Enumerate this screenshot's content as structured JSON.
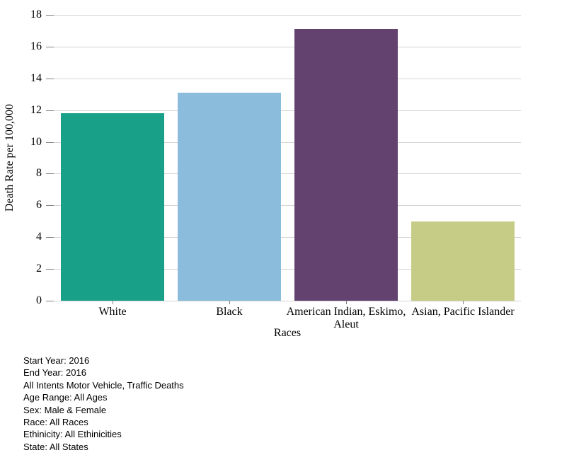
{
  "chart_data": {
    "type": "bar",
    "categories": [
      "White",
      "Black",
      "American Indian, Eskimo, Aleut",
      "Asian, Pacific Islander"
    ],
    "values": [
      11.8,
      13.1,
      17.1,
      5.0
    ],
    "bar_colors": [
      "#19a088",
      "#8bbcdb",
      "#634270",
      "#c6cc86"
    ],
    "title": "",
    "xlabel": "Races",
    "ylabel": "Death Rate per 100,000",
    "ylim": [
      0,
      18
    ],
    "ytick_step": 2,
    "yticks": [
      0,
      2,
      4,
      6,
      8,
      10,
      12,
      14,
      16,
      18
    ],
    "grid": "horizontal",
    "gridline_color": "#d3d3d3",
    "legend": "none",
    "background": "#ffffff"
  },
  "footer": {
    "lines": [
      "Start Year: 2016",
      "End Year: 2016",
      "All Intents Motor Vehicle, Traffic Deaths",
      "Age Range: All Ages",
      "Sex: Male & Female",
      "Race: All Races",
      "Ethinicity: All Ethinicities",
      "State: All States"
    ]
  }
}
